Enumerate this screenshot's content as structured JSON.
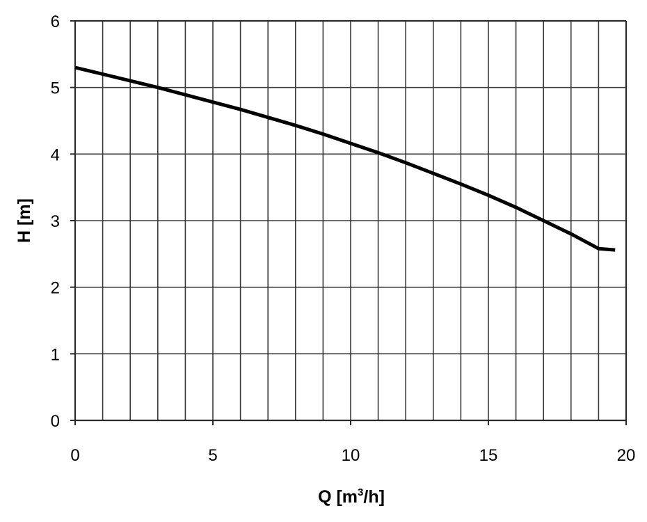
{
  "chart_data": {
    "type": "line",
    "title": "",
    "xlabel": {
      "main": "Q [m",
      "superscript": "3",
      "tail": "/h]"
    },
    "ylabel": "H [m]",
    "xlim": [
      0,
      20
    ],
    "ylim": [
      0,
      6
    ],
    "x_ticks": [
      0,
      5,
      10,
      15,
      20
    ],
    "x_tick_labels": [
      "0",
      "5",
      "10",
      "15",
      "20"
    ],
    "y_ticks": [
      0,
      1,
      2,
      3,
      4,
      5,
      6
    ],
    "y_tick_labels": [
      "0",
      "1",
      "2",
      "3",
      "4",
      "5",
      "6"
    ],
    "x_grid_step": 1,
    "y_grid_step": 1,
    "grid": true,
    "series": [
      {
        "x": [
          0,
          1,
          2,
          3,
          4,
          5,
          6,
          7,
          8,
          9,
          10,
          11,
          12,
          13,
          14,
          15,
          16,
          17,
          18,
          19,
          19.6
        ],
        "y": [
          5.3,
          5.2,
          5.1,
          5.0,
          4.89,
          4.78,
          4.67,
          4.55,
          4.43,
          4.3,
          4.16,
          4.02,
          3.87,
          3.71,
          3.55,
          3.38,
          3.2,
          3.0,
          2.8,
          2.58,
          2.56
        ],
        "color": "#000000"
      }
    ]
  }
}
